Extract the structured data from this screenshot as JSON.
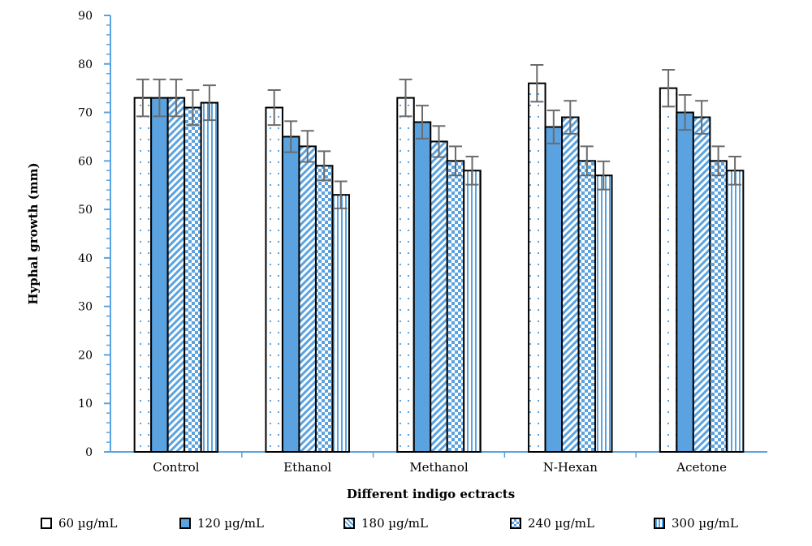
{
  "chart_data": {
    "type": "bar",
    "xlabel": "Different indigo ectracts",
    "ylabel": "Hyphal growth (mm)",
    "ylim": [
      0,
      90
    ],
    "yticks": [
      0,
      10,
      20,
      30,
      40,
      50,
      60,
      70,
      80,
      90
    ],
    "categories": [
      "Control",
      "Ethanol",
      "Methanol",
      "N-Hexan",
      "Acetone"
    ],
    "legend_position": "bottom",
    "series": [
      {
        "name": "60 µg/mL",
        "pattern": "dotted",
        "color": "#ffffff",
        "values": [
          73,
          71,
          73,
          76,
          75
        ],
        "errors": [
          3.8,
          3.6,
          3.8,
          3.8,
          3.8
        ]
      },
      {
        "name": "120 µg/mL",
        "pattern": "solid",
        "color": "#5ba3e0",
        "values": [
          73,
          65,
          68,
          67,
          70
        ],
        "errors": [
          3.8,
          3.2,
          3.4,
          3.4,
          3.6
        ]
      },
      {
        "name": "180 µg/mL",
        "pattern": "diagonal",
        "color": "#5ba3e0",
        "values": [
          73,
          63,
          64,
          69,
          69
        ],
        "errors": [
          3.8,
          3.2,
          3.2,
          3.4,
          3.4
        ]
      },
      {
        "name": "240 µg/mL",
        "pattern": "checker",
        "color": "#5ba3e0",
        "values": [
          71,
          59,
          60,
          60,
          60
        ],
        "errors": [
          3.6,
          3.0,
          3.0,
          3.0,
          3.0
        ]
      },
      {
        "name": "300 µg/mL",
        "pattern": "vertical",
        "color": "#5ba3e0",
        "values": [
          72,
          53,
          58,
          57,
          58
        ],
        "errors": [
          3.6,
          2.8,
          2.9,
          2.9,
          2.9
        ]
      }
    ]
  }
}
